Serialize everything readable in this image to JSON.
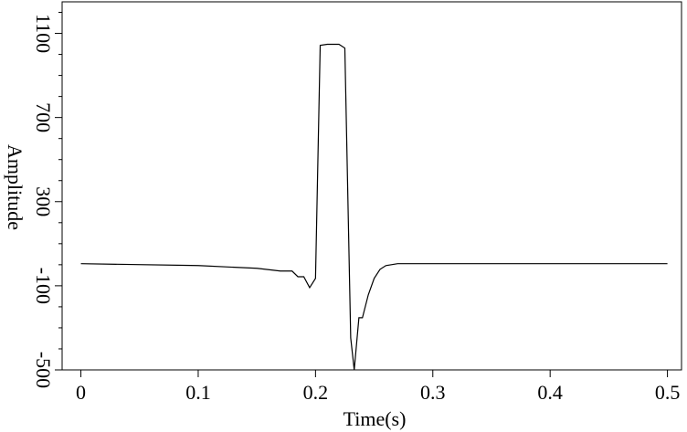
{
  "chart_data": {
    "type": "line",
    "x_label": "Time(s)",
    "y_label": "Amplitude",
    "x": [
      0,
      0.1,
      0.15,
      0.17,
      0.18,
      0.185,
      0.19,
      0.195,
      0.2,
      0.204,
      0.21,
      0.22,
      0.225,
      0.23,
      0.233,
      0.237,
      0.24,
      0.245,
      0.25,
      0.255,
      0.26,
      0.27,
      0.5
    ],
    "series": [
      {
        "color": "#000000",
        "values": [
          5,
          -4,
          -17,
          -30,
          -30,
          -57,
          -57,
          -109,
          -65,
          1043,
          1048,
          1048,
          1030,
          -348,
          -500,
          -252,
          -252,
          -143,
          -65,
          -22,
          -4,
          5,
          5
        ]
      }
    ],
    "xlim": [
      -0.016,
      0.512
    ],
    "ylim": [
      -500,
      1250
    ],
    "xticks": [
      0,
      0.1,
      0.2,
      0.3,
      0.4,
      0.5
    ],
    "yticks": [
      -500,
      -100,
      300,
      700,
      1100
    ],
    "yminorticks": [
      -400,
      -300,
      -200,
      0,
      100,
      200,
      400,
      500,
      600,
      800,
      900,
      1000,
      1200
    ]
  }
}
